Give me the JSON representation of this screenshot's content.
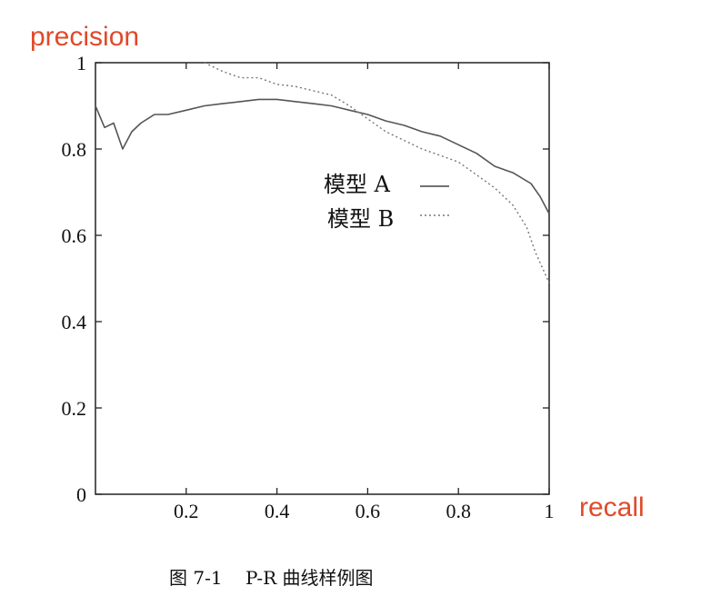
{
  "chart_data": {
    "type": "line",
    "title": "",
    "ylabel": "precision",
    "xlabel": "recall",
    "xlim": [
      0,
      1
    ],
    "ylim": [
      0,
      1
    ],
    "xticks": [
      "0.2",
      "0.4",
      "0.6",
      "0.8",
      "1"
    ],
    "yticks": [
      "0",
      "0.2",
      "0.4",
      "0.6",
      "0.8",
      "1"
    ],
    "grid": false,
    "legend_position": "top-right",
    "series": [
      {
        "name": "模型 A",
        "style": "solid",
        "color": "#555555",
        "x": [
          0.0,
          0.02,
          0.04,
          0.06,
          0.08,
          0.1,
          0.13,
          0.16,
          0.2,
          0.24,
          0.28,
          0.32,
          0.36,
          0.4,
          0.44,
          0.48,
          0.52,
          0.56,
          0.6,
          0.64,
          0.68,
          0.72,
          0.76,
          0.8,
          0.84,
          0.88,
          0.92,
          0.96,
          0.98,
          1.0
        ],
        "y": [
          0.9,
          0.85,
          0.86,
          0.8,
          0.84,
          0.86,
          0.88,
          0.88,
          0.89,
          0.9,
          0.905,
          0.91,
          0.915,
          0.915,
          0.91,
          0.905,
          0.9,
          0.89,
          0.88,
          0.865,
          0.855,
          0.84,
          0.83,
          0.81,
          0.79,
          0.76,
          0.745,
          0.72,
          0.69,
          0.65
        ]
      },
      {
        "name": "模型 B",
        "style": "dotted",
        "color": "#777777",
        "x": [
          0.24,
          0.28,
          0.32,
          0.36,
          0.4,
          0.44,
          0.48,
          0.52,
          0.56,
          0.6,
          0.64,
          0.68,
          0.72,
          0.76,
          0.8,
          0.84,
          0.88,
          0.92,
          0.95,
          0.97,
          1.0
        ],
        "y": [
          1.0,
          0.98,
          0.965,
          0.965,
          0.95,
          0.945,
          0.935,
          0.925,
          0.9,
          0.87,
          0.84,
          0.82,
          0.8,
          0.785,
          0.77,
          0.74,
          0.71,
          0.67,
          0.62,
          0.56,
          0.49
        ]
      }
    ]
  },
  "caption": "图 7-1    P-R 曲线样例图"
}
